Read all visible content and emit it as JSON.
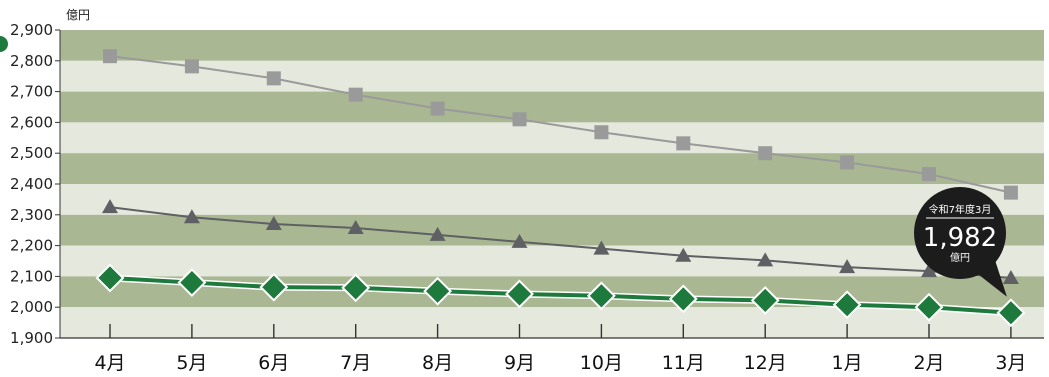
{
  "chart_data": {
    "type": "line",
    "unit_label": "億円",
    "categories": [
      "4月",
      "5月",
      "6月",
      "7月",
      "8月",
      "9月",
      "10月",
      "11月",
      "12月",
      "1月",
      "2月",
      "3月"
    ],
    "ylim": [
      1900,
      2900
    ],
    "yticks": [
      "1,900",
      "2,000",
      "2,100",
      "2,200",
      "2,300",
      "2,400",
      "2,500",
      "2,600",
      "2,700",
      "2,800",
      "2,900"
    ],
    "series": [
      {
        "marker": "square",
        "color": "#9a9a9a",
        "values": [
          2815,
          2782,
          2743,
          2690,
          2645,
          2610,
          2568,
          2532,
          2500,
          2470,
          2432,
          2372
        ]
      },
      {
        "marker": "triangle",
        "color": "#5f6063",
        "values": [
          2325,
          2292,
          2270,
          2257,
          2235,
          2212,
          2190,
          2167,
          2152,
          2130,
          2117,
          2095
        ]
      },
      {
        "marker": "diamond",
        "color": "#1e7a3c",
        "values": [
          2095,
          2080,
          2065,
          2063,
          2052,
          2043,
          2037,
          2027,
          2022,
          2008,
          2000,
          1982
        ]
      }
    ],
    "band_colors": [
      "#a9b793",
      "#e4e8dd"
    ],
    "grid": true,
    "callout": {
      "title": "令和7年度3月",
      "value": "1,982",
      "unit": "億円",
      "color": "#1c1c1c"
    }
  }
}
